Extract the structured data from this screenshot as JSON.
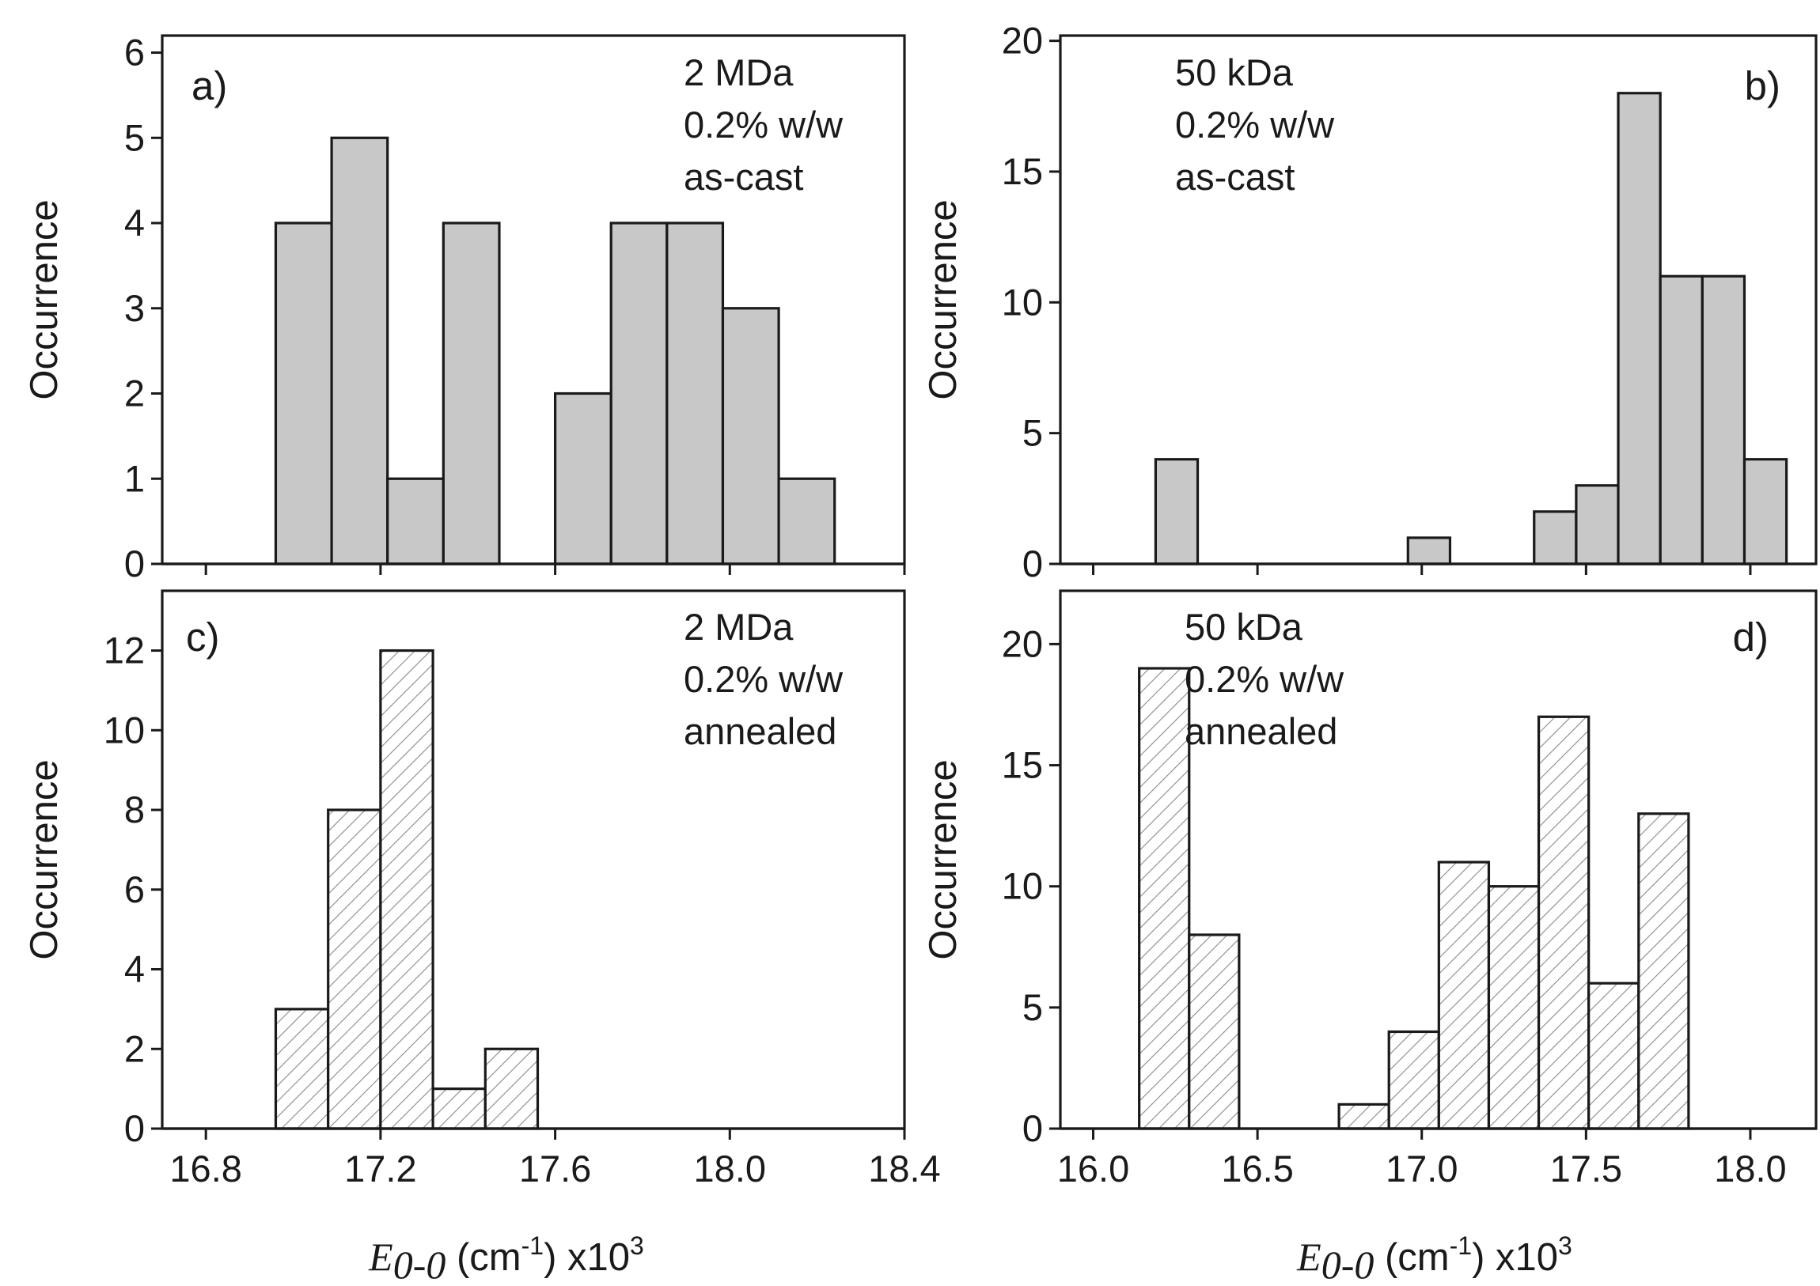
{
  "figure": {
    "xlabel": {
      "symbol": "E",
      "subscript": "0-0",
      "unit_open": " (cm",
      "unit_exp": "-1",
      "unit_close": ") x10",
      "scale_exp": "3"
    }
  },
  "colors": {
    "solid_fill": "#c8c8c8",
    "hatch_fill": "#ffffff",
    "stroke": "#1a1a1a"
  },
  "chart_data": [
    {
      "type": "bar",
      "panel_label": "a)",
      "title": "",
      "annotation": [
        "2 MDa",
        "0.2% w/w",
        "as-cast"
      ],
      "fill": "solid",
      "ylabel": "Occurrence",
      "xlabel": "",
      "xlim": [
        16.7,
        18.4
      ],
      "ylim": [
        0,
        6.2
      ],
      "xticks": [
        16.8,
        17.2,
        17.6,
        18.0,
        18.4
      ],
      "xtick_labels": [],
      "yticks": [
        0,
        1,
        2,
        3,
        4,
        5,
        6
      ],
      "ytick_labels": [
        "0",
        "1",
        "2",
        "3",
        "4",
        "5",
        "6"
      ],
      "bin_width": 0.128,
      "bins": [
        {
          "left": 16.96,
          "value": 4
        },
        {
          "left": 17.088,
          "value": 5
        },
        {
          "left": 17.216,
          "value": 1
        },
        {
          "left": 17.344,
          "value": 4
        },
        {
          "left": 17.472,
          "value": 0
        },
        {
          "left": 17.6,
          "value": 2
        },
        {
          "left": 17.728,
          "value": 4
        },
        {
          "left": 17.856,
          "value": 4
        },
        {
          "left": 17.984,
          "value": 3
        },
        {
          "left": 18.112,
          "value": 1
        }
      ]
    },
    {
      "type": "bar",
      "panel_label": "b)",
      "title": "",
      "annotation": [
        "50 kDa",
        "0.2% w/w",
        "as-cast"
      ],
      "fill": "solid",
      "ylabel": "Occurrence",
      "xlabel": "",
      "xlim": [
        15.9,
        18.2
      ],
      "ylim": [
        0,
        20.2
      ],
      "xticks": [
        16.0,
        16.5,
        17.0,
        17.5,
        18.0
      ],
      "xtick_labels": [],
      "yticks": [
        0,
        5,
        10,
        15,
        20
      ],
      "ytick_labels": [
        "0",
        "5",
        "10",
        "15",
        "20"
      ],
      "bin_width": 0.128,
      "bins": [
        {
          "left": 16.19,
          "value": 4
        },
        {
          "left": 16.318,
          "value": 0
        },
        {
          "left": 16.446,
          "value": 0
        },
        {
          "left": 16.574,
          "value": 0
        },
        {
          "left": 16.702,
          "value": 0
        },
        {
          "left": 16.83,
          "value": 0
        },
        {
          "left": 16.958,
          "value": 1
        },
        {
          "left": 17.086,
          "value": 0
        },
        {
          "left": 17.214,
          "value": 0
        },
        {
          "left": 17.342,
          "value": 2
        },
        {
          "left": 17.47,
          "value": 3
        },
        {
          "left": 17.598,
          "value": 18
        },
        {
          "left": 17.726,
          "value": 11
        },
        {
          "left": 17.854,
          "value": 11
        },
        {
          "left": 17.982,
          "value": 4
        }
      ]
    },
    {
      "type": "bar",
      "panel_label": "c)",
      "title": "",
      "annotation": [
        "2 MDa",
        "0.2% w/w",
        "annealed"
      ],
      "fill": "hatched",
      "ylabel": "Occurrence",
      "xlabel": "E0-0 (cm-1) x103",
      "xlim": [
        16.7,
        18.4
      ],
      "ylim": [
        0,
        13.5
      ],
      "xticks": [
        16.8,
        17.2,
        17.6,
        18.0,
        18.4
      ],
      "xtick_labels": [
        "16.8",
        "17.2",
        "17.6",
        "18.0",
        "18.4"
      ],
      "yticks": [
        0,
        2,
        4,
        6,
        8,
        10,
        12
      ],
      "ytick_labels": [
        "0",
        "2",
        "4",
        "6",
        "8",
        "10",
        "12"
      ],
      "bin_width": 0.12,
      "bins": [
        {
          "left": 16.96,
          "value": 3
        },
        {
          "left": 17.08,
          "value": 8
        },
        {
          "left": 17.2,
          "value": 12
        },
        {
          "left": 17.32,
          "value": 1
        },
        {
          "left": 17.44,
          "value": 2
        }
      ]
    },
    {
      "type": "bar",
      "panel_label": "d)",
      "title": "",
      "annotation": [
        "50 kDa",
        "0.2% w/w",
        "annealed"
      ],
      "fill": "hatched",
      "ylabel": "Occurrence",
      "xlabel": "E0-0 (cm-1) x103",
      "xlim": [
        15.9,
        18.2
      ],
      "ylim": [
        0,
        22.2
      ],
      "xticks": [
        16.0,
        16.5,
        17.0,
        17.5,
        18.0
      ],
      "xtick_labels": [
        "16.0",
        "16.5",
        "17.0",
        "17.5",
        "18.0"
      ],
      "yticks": [
        0,
        5,
        10,
        15,
        20
      ],
      "ytick_labels": [
        "0",
        "5",
        "10",
        "15",
        "20"
      ],
      "bin_width": 0.152,
      "bins": [
        {
          "left": 16.14,
          "value": 19
        },
        {
          "left": 16.292,
          "value": 8
        },
        {
          "left": 16.444,
          "value": 0
        },
        {
          "left": 16.596,
          "value": 0
        },
        {
          "left": 16.748,
          "value": 1
        },
        {
          "left": 16.9,
          "value": 4
        },
        {
          "left": 17.052,
          "value": 11
        },
        {
          "left": 17.204,
          "value": 10
        },
        {
          "left": 17.356,
          "value": 17
        },
        {
          "left": 17.508,
          "value": 6
        },
        {
          "left": 17.66,
          "value": 13
        }
      ]
    }
  ]
}
